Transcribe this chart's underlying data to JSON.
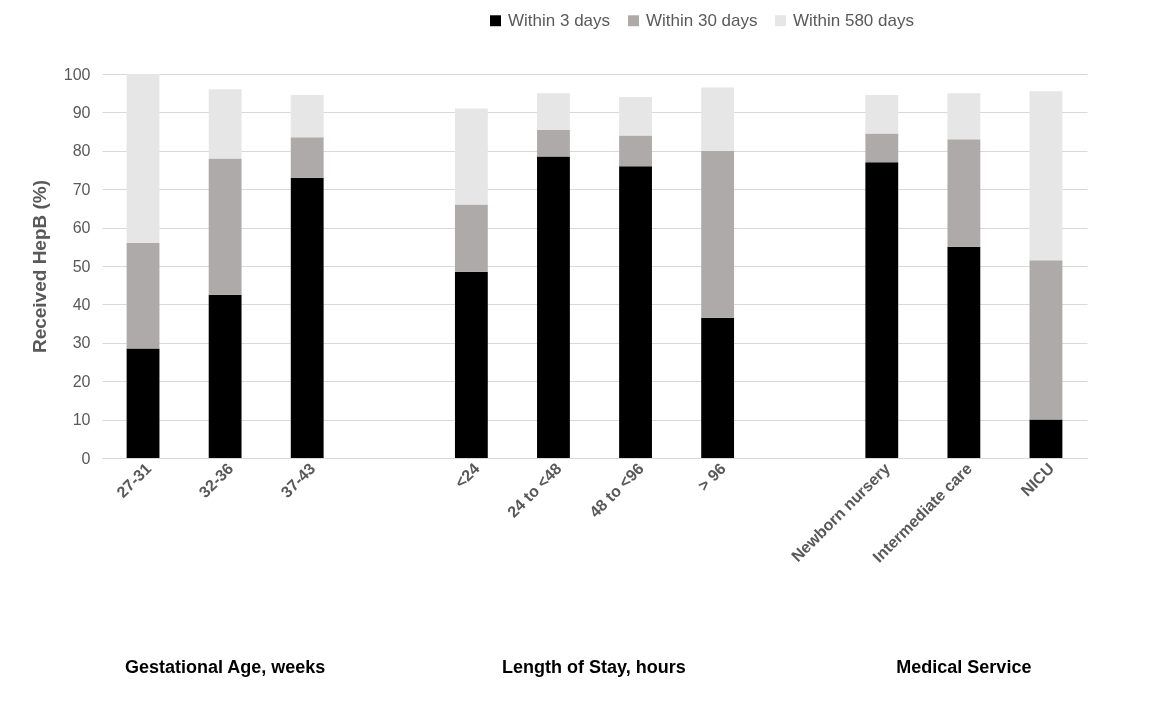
{
  "chart_data": {
    "type": "bar",
    "stacked": true,
    "ylabel": "Received HepB (%)",
    "categories": [
      "27-31",
      "32-36",
      "37-43",
      null,
      "<24",
      "24 to <48",
      "48 to <96",
      "> 96",
      null,
      "Newborn nursery",
      "Intermediate care",
      "NICU"
    ],
    "series": [
      {
        "name": "Within 3 days",
        "color": "#000000",
        "values": [
          28.5,
          42.5,
          73,
          null,
          48.5,
          78.5,
          76,
          36.5,
          null,
          77,
          55,
          10
        ]
      },
      {
        "name": "Within 30 days",
        "color": "#aeaaaa",
        "values": [
          27.5,
          35.5,
          10.5,
          null,
          17.5,
          7,
          8,
          43.5,
          null,
          7.5,
          28,
          41.5
        ]
      },
      {
        "name": "Within 580 days",
        "color": "#e6e6e6",
        "values": [
          44,
          18,
          11,
          null,
          25,
          9.5,
          10,
          16.5,
          null,
          10,
          12,
          44
        ]
      }
    ],
    "ylim": [
      0,
      100
    ],
    "yticks": [
      0,
      10,
      20,
      30,
      40,
      50,
      60,
      70,
      80,
      90,
      100
    ],
    "grid": "y",
    "legend": "top right",
    "annotations": [
      "Gestational Age, weeks",
      "Length of Stay, hours",
      "Medical Service"
    ]
  }
}
